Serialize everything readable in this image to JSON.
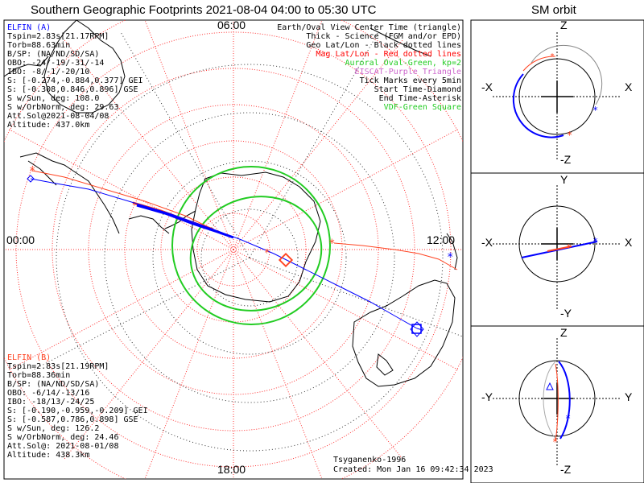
{
  "title": "Southern Geographic Footprints 2021-08-04 04:00 to 05:30 UTC",
  "orbit_title": "SM orbit",
  "map": {
    "time_labels": {
      "top": "06:00",
      "left": "00:00",
      "right": "12:00",
      "bottom": "18:00"
    }
  },
  "legend": [
    {
      "text": "Earth/Oval View Center Time (triangle)",
      "color": "#000000"
    },
    {
      "text": "Thick - Science (FGM and/or EPD)",
      "color": "#000000"
    },
    {
      "text": "Geo Lat/Lon - Black dotted lines",
      "color": "#000000"
    },
    {
      "text": "Mag Lat/Lon - Red dotted lines",
      "color": "#ff0000"
    },
    {
      "text": "Auroral Oval-Green, kp=2",
      "color": "#22cc22"
    },
    {
      "text": "EISCAT-Purple Triangle",
      "color": "#cc66cc"
    },
    {
      "text": "Tick Marks every 5min",
      "color": "#000000"
    },
    {
      "text": "Start Time-Diamond",
      "color": "#000000"
    },
    {
      "text": "End Time-Asterisk",
      "color": "#000000"
    },
    {
      "text": "VDF-Green Square",
      "color": "#22cc22"
    }
  ],
  "elfin_a": {
    "name": "ELFIN (A)",
    "lines": [
      "Tspin=2.83s[21.17RPM]",
      "Torb=88.63min",
      "B/SP: (NA/ND/SD/SA)",
      "OBO: -24/-19/-31/-14",
      "IBO: -8/-1/-20/10",
      "S: [-0.274,-0.884,0.377] GEI",
      "S: [-0.308,0.846,0.896] GSE",
      "S w/Sun, deg: 108.0",
      "S w/OrbNorm, deg: 29.63",
      "Att.Sol@2021-08-04/08",
      "Altitude: 437.0km"
    ]
  },
  "elfin_b": {
    "name": "ELFIN (B)",
    "lines": [
      "Tspin=2.83s[21.19RPM]",
      "Torb=88.36min",
      "B/SP: (NA/ND/SD/SA)",
      "OBO: -6/14/-13/16",
      "IBO: -18/13/-24/25",
      "S: [-0.190,-0.959,-0.209] GEI",
      "S: [-0.587,0.786,0.898] GSE",
      "S w/Sun, deg: 126.2",
      "S w/OrbNorm, deg: 24.46",
      "Att.Sol@: 2021-08-01/08",
      "Altitude: 438.3km"
    ]
  },
  "credits": {
    "model": "Tsyganenko-1996",
    "created": "Created: Mon Jan 16 09:42:34 2023"
  },
  "panels": [
    {
      "top": "Z",
      "bottom": "-Z",
      "left": "-X",
      "right": "X"
    },
    {
      "top": "Y",
      "bottom": "-Y",
      "left": "-X",
      "right": "X"
    },
    {
      "top": "Z",
      "bottom": "-Z",
      "left": "-Y",
      "right": "Y"
    }
  ],
  "colors": {
    "elfin_a": "#0000ff",
    "elfin_b": "#ff4422",
    "grid_geo": "#000000",
    "grid_mag": "#ff0000",
    "oval": "#22cc22"
  }
}
